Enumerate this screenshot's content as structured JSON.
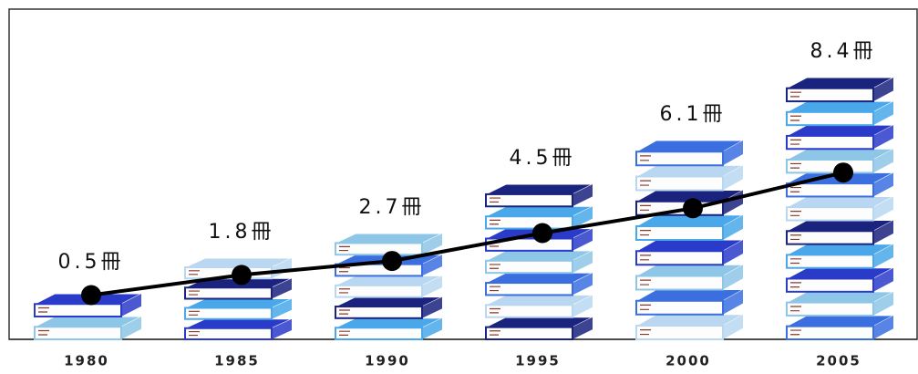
{
  "chart_data": {
    "type": "line",
    "categories": [
      "1980",
      "1985",
      "1990",
      "1995",
      "2000",
      "2005"
    ],
    "values": [
      0.5,
      1.8,
      2.7,
      4.5,
      6.1,
      8.4
    ],
    "value_labels": [
      "0.5冊",
      "1.8冊",
      "2.7冊",
      "4.5冊",
      "6.1冊",
      "8.4冊"
    ],
    "color": "#000000",
    "book_colors": [
      "#8ec6e8",
      "#2a3bc9",
      "#4aa8ea",
      "#1a237e",
      "#b9d7f0",
      "#3b6fe0"
    ]
  }
}
